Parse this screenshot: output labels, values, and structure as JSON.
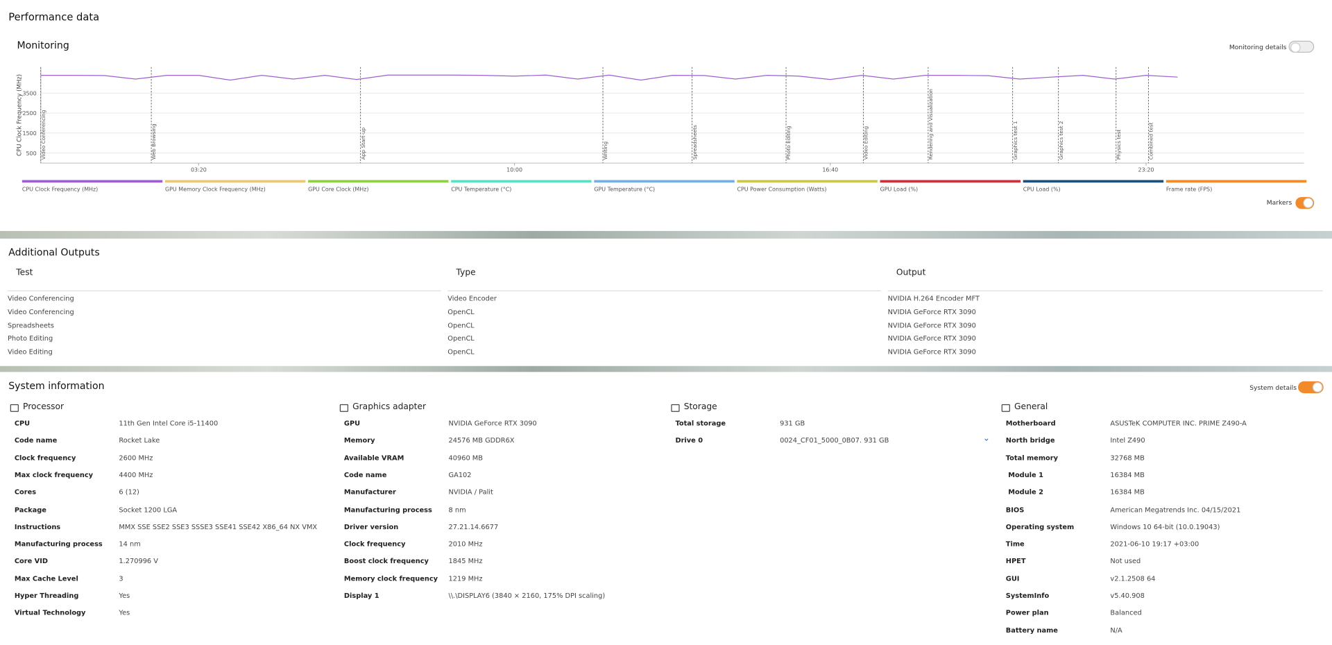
{
  "header": {
    "title": "Performance data"
  },
  "monitoring": {
    "title": "Monitoring",
    "details_toggle": "Monitoring details",
    "markers_toggle": "Markers"
  },
  "chart_data": {
    "type": "line",
    "y_label": "CPU Clock Frequency (MHz)",
    "x": [
      0,
      40,
      80,
      120,
      160,
      200,
      240,
      280,
      320,
      360,
      400,
      440,
      480,
      520,
      560,
      600,
      640,
      680,
      720,
      760,
      800,
      840,
      880,
      920,
      960,
      1000,
      1040,
      1080,
      1120,
      1160,
      1200,
      1240,
      1280,
      1320,
      1360,
      1400,
      1440
    ],
    "series": [
      {
        "name": "CPU Clock Frequency (MHz)",
        "color": "#9b5fd1",
        "values": [
          4390,
          4390,
          4380,
          4200,
          4390,
          4390,
          4150,
          4390,
          4200,
          4390,
          4180,
          4400,
          4400,
          4400,
          4390,
          4350,
          4400,
          4200,
          4400,
          4150,
          4390,
          4380,
          4200,
          4390,
          4350,
          4180,
          4390,
          4200,
          4390,
          4390,
          4370,
          4200,
          4300,
          4390,
          4200,
          4390,
          4300
        ]
      },
      {
        "name": "GPU Memory Clock Frequency (MHz)",
        "color": "#e8c97a"
      },
      {
        "name": "GPU Core Clock (MHz)",
        "color": "#8fcf4a"
      },
      {
        "name": "CPU Temperature (°C)",
        "color": "#5ce0c0"
      },
      {
        "name": "GPU Temperature (°C)",
        "color": "#7aaee0"
      },
      {
        "name": "CPU Power Consumption (Watts)",
        "color": "#c8c850"
      },
      {
        "name": "GPU Load (%)",
        "color": "#c8323c"
      },
      {
        "name": "CPU Load (%)",
        "color": "#1f4e79"
      },
      {
        "name": "Frame rate (FPS)",
        "color": "#f08a2a"
      }
    ],
    "xlim": [
      0,
      1600
    ],
    "ylim": [
      0,
      4800
    ],
    "xticks": [
      {
        "value": 200,
        "label": "03:20"
      },
      {
        "value": 600,
        "label": "10:00"
      },
      {
        "value": 1000,
        "label": "16:40"
      },
      {
        "value": 1400,
        "label": "23:20"
      }
    ],
    "yticks": [
      500,
      1500,
      2500,
      3500
    ],
    "grid": true,
    "markers": [
      {
        "x": 0,
        "label": "Video Conferencing"
      },
      {
        "x": 140,
        "label": "Web Browsing"
      },
      {
        "x": 405,
        "label": "App Start-up"
      },
      {
        "x": 712,
        "label": "Writing"
      },
      {
        "x": 825,
        "label": "Spreadsheets"
      },
      {
        "x": 944,
        "label": "Photo Editing"
      },
      {
        "x": 1042,
        "label": "Video Editing"
      },
      {
        "x": 1124,
        "label": "Rendering and Visualization"
      },
      {
        "x": 1231,
        "label": "Graphics test 1"
      },
      {
        "x": 1289,
        "label": "Graphics test 2"
      },
      {
        "x": 1362,
        "label": "Physics test"
      },
      {
        "x": 1403,
        "label": "Combined test"
      }
    ]
  },
  "additional_outputs": {
    "title": "Additional Outputs",
    "columns": [
      "Test",
      "Type",
      "Output"
    ],
    "rows": [
      [
        "Video Conferencing",
        "Video Encoder",
        "NVIDIA H.264 Encoder MFT"
      ],
      [
        "Video Conferencing",
        "OpenCL",
        "NVIDIA GeForce RTX 3090"
      ],
      [
        "Spreadsheets",
        "OpenCL",
        "NVIDIA GeForce RTX 3090"
      ],
      [
        "Photo Editing",
        "OpenCL",
        "NVIDIA GeForce RTX 3090"
      ],
      [
        "Video Editing",
        "OpenCL",
        "NVIDIA GeForce RTX 3090"
      ]
    ]
  },
  "system_information": {
    "title": "System information",
    "details_toggle": "System details",
    "sections": [
      {
        "title": "Processor",
        "rows": [
          [
            "CPU",
            "11th Gen Intel Core i5-11400"
          ],
          [
            "Code name",
            "Rocket Lake"
          ],
          [
            "Clock frequency",
            "2600 MHz"
          ],
          [
            "Max clock frequency",
            "4400 MHz"
          ],
          [
            "Cores",
            "6 (12)"
          ],
          [
            "Package",
            "Socket 1200 LGA"
          ],
          [
            "Instructions",
            "MMX SSE SSE2 SSE3 SSSE3 SSE41 SSE42 X86_64 NX VMX"
          ],
          [
            "Manufacturing process",
            "14 nm"
          ],
          [
            "Core VID",
            "1.270996 V"
          ],
          [
            "Max Cache Level",
            "3"
          ],
          [
            "Hyper Threading",
            "Yes"
          ],
          [
            "Virtual Technology",
            "Yes"
          ]
        ]
      },
      {
        "title": "Graphics adapter",
        "rows": [
          [
            "GPU",
            "NVIDIA GeForce RTX 3090"
          ],
          [
            "Memory",
            "24576 MB GDDR6X"
          ],
          [
            "Available VRAM",
            "40960 MB"
          ],
          [
            "Code name",
            "GA102"
          ],
          [
            "Manufacturer",
            "NVIDIA / Palit"
          ],
          [
            "Manufacturing process",
            "8 nm"
          ],
          [
            "Driver version",
            "27.21.14.6677"
          ],
          [
            "Clock frequency",
            "2010 MHz"
          ],
          [
            "Boost clock frequency",
            "1845 MHz"
          ],
          [
            "Memory clock frequency",
            "1219 MHz"
          ],
          [
            "Display 1",
            "\\\\.\\DISPLAY6 (3840 × 2160, 175% DPI scaling)"
          ]
        ]
      },
      {
        "title": "Storage",
        "rows": [
          [
            "Total storage",
            "931 GB"
          ],
          [
            "Drive 0",
            "0024_CF01_5000_0B07. 931 GB"
          ]
        ]
      },
      {
        "title": "General",
        "rows": [
          [
            "Motherboard",
            "ASUSTeK COMPUTER INC. PRIME Z490-A"
          ],
          [
            "North bridge",
            "Intel Z490"
          ],
          [
            "Total memory",
            "32768 MB"
          ],
          [
            " Module 1",
            "16384 MB"
          ],
          [
            " Module 2",
            "16384 MB"
          ],
          [
            "BIOS",
            "American Megatrends Inc. 04/15/2021"
          ],
          [
            "Operating system",
            "Windows 10 64-bit (10.0.19043)"
          ],
          [
            "Time",
            "2021-06-10 19:17 +03:00"
          ],
          [
            "HPET",
            "Not used"
          ],
          [
            "GUI",
            "v2.1.2508 64"
          ],
          [
            "SystemInfo",
            "v5.40.908"
          ],
          [
            "Power plan",
            "Balanced"
          ],
          [
            "Battery name",
            "N/A"
          ]
        ]
      }
    ]
  }
}
